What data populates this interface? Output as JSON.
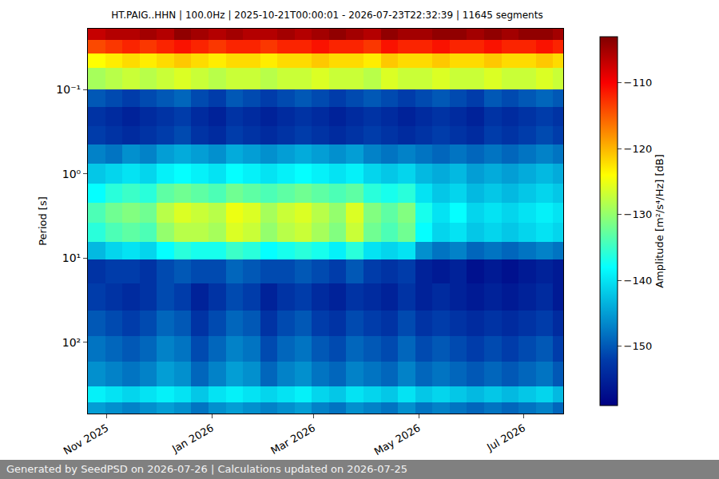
{
  "chart_data": {
    "type": "heatmap",
    "title": "HT.PAIG..HHN | 100.0Hz | 2025-10-21T00:00:01 - 2026-07-23T22:32:39 | 11645 segments",
    "footer": "Generated by SeedPSD on 2026-07-26 | Calculations updated on 2026-07-25",
    "y_label": "Period [s]",
    "colorbar_label": "Amplitude [m²/s⁴/Hz] [dB]",
    "log": "y",
    "grid": true,
    "x_edges": [
      "2025-10-21 00:00:01",
      "2025-10-31",
      "2025-11-10",
      "2025-11-20",
      "2025-11-30",
      "2025-12-10",
      "2025-12-20",
      "2025-12-30",
      "2026-01-09",
      "2026-01-19",
      "2026-01-29",
      "2026-02-08",
      "2026-02-18",
      "2026-02-28",
      "2026-03-10",
      "2026-03-20",
      "2026-03-30",
      "2026-04-09",
      "2026-04-19",
      "2026-04-29",
      "2026-05-09",
      "2026-05-19",
      "2026-05-29",
      "2026-06-08",
      "2026-06-18",
      "2026-06-28",
      "2026-07-08",
      "2026-07-18",
      "2026-07-23 22:32:39"
    ],
    "y_edges": [
      0.019,
      0.026,
      0.037,
      0.055,
      0.1,
      0.16,
      0.27,
      0.45,
      0.75,
      1.3,
      2.2,
      3.8,
      6.5,
      10.5,
      20,
      42,
      85,
      170,
      330,
      520,
      700
    ],
    "z": [
      [
        -107,
        -106,
        -106,
        -105,
        -106,
        -104,
        -105,
        -106,
        -105,
        -106,
        -106,
        -105,
        -106,
        -105,
        -104,
        -105,
        -106,
        -104,
        -105,
        -105,
        -104,
        -104,
        -105,
        -104,
        -105,
        -104,
        -104,
        -105
      ],
      [
        -114,
        -113,
        -112,
        -113,
        -112,
        -111,
        -112,
        -113,
        -112,
        -112,
        -113,
        -112,
        -112,
        -111,
        -112,
        -112,
        -113,
        -111,
        -112,
        -112,
        -111,
        -112,
        -112,
        -111,
        -112,
        -112,
        -111,
        -112
      ],
      [
        -124,
        -123,
        -122,
        -123,
        -122,
        -121,
        -122,
        -123,
        -122,
        -122,
        -123,
        -122,
        -122,
        -121,
        -122,
        -122,
        -123,
        -121,
        -122,
        -122,
        -121,
        -122,
        -122,
        -121,
        -122,
        -122,
        -121,
        -122
      ],
      [
        -129,
        -128,
        -127,
        -128,
        -127,
        -126,
        -127,
        -128,
        -127,
        -127,
        -128,
        -127,
        -127,
        -126,
        -127,
        -127,
        -128,
        -126,
        -127,
        -127,
        -126,
        -127,
        -127,
        -126,
        -127,
        -127,
        -126,
        -127
      ],
      [
        -150,
        -151,
        -152,
        -151,
        -150,
        -149,
        -151,
        -152,
        -150,
        -151,
        -152,
        -151,
        -150,
        -151,
        -152,
        -151,
        -150,
        -151,
        -152,
        -151,
        -150,
        -151,
        -152,
        -150,
        -151,
        -150,
        -149,
        -150
      ],
      [
        -153,
        -154,
        -155,
        -154,
        -153,
        -152,
        -154,
        -155,
        -153,
        -154,
        -155,
        -154,
        -153,
        -154,
        -155,
        -154,
        -153,
        -154,
        -155,
        -154,
        -153,
        -154,
        -155,
        -153,
        -154,
        -153,
        -152,
        -153
      ],
      [
        -152,
        -153,
        -154,
        -153,
        -152,
        -151,
        -153,
        -154,
        -152,
        -153,
        -154,
        -153,
        -152,
        -153,
        -154,
        -153,
        -152,
        -153,
        -154,
        -153,
        -152,
        -153,
        -154,
        -152,
        -153,
        -152,
        -151,
        -152
      ],
      [
        -147,
        -148,
        -146,
        -147,
        -145,
        -144,
        -145,
        -146,
        -144,
        -145,
        -146,
        -145,
        -144,
        -145,
        -146,
        -145,
        -147,
        -148,
        -147,
        -148,
        -149,
        -148,
        -149,
        -148,
        -149,
        -148,
        -147,
        -148
      ],
      [
        -142,
        -141,
        -140,
        -141,
        -139,
        -138,
        -139,
        -140,
        -138,
        -139,
        -140,
        -139,
        -138,
        -139,
        -140,
        -139,
        -141,
        -142,
        -141,
        -143,
        -144,
        -143,
        -145,
        -144,
        -145,
        -144,
        -143,
        -144
      ],
      [
        -138,
        -136,
        -135,
        -136,
        -133,
        -132,
        -133,
        -134,
        -132,
        -133,
        -134,
        -133,
        -132,
        -133,
        -134,
        -133,
        -136,
        -137,
        -136,
        -140,
        -142,
        -141,
        -143,
        -142,
        -143,
        -142,
        -141,
        -142
      ],
      [
        -134,
        -132,
        -131,
        -132,
        -128,
        -126,
        -127,
        -128,
        -125,
        -126,
        -129,
        -127,
        -126,
        -128,
        -130,
        -126,
        -131,
        -133,
        -131,
        -137,
        -140,
        -138,
        -141,
        -140,
        -141,
        -140,
        -139,
        -140
      ],
      [
        -136,
        -134,
        -133,
        -134,
        -130,
        -128,
        -128,
        -129,
        -126,
        -127,
        -130,
        -128,
        -127,
        -129,
        -131,
        -127,
        -132,
        -134,
        -132,
        -138,
        -141,
        -140,
        -142,
        -141,
        -142,
        -141,
        -140,
        -141
      ],
      [
        -143,
        -141,
        -140,
        -141,
        -138,
        -136,
        -137,
        -137,
        -135,
        -136,
        -138,
        -137,
        -136,
        -137,
        -139,
        -136,
        -140,
        -141,
        -140,
        -146,
        -148,
        -147,
        -149,
        -148,
        -149,
        -148,
        -147,
        -148
      ],
      [
        -153,
        -152,
        -152,
        -153,
        -151,
        -150,
        -151,
        -151,
        -149,
        -150,
        -151,
        -151,
        -150,
        -151,
        -152,
        -150,
        -152,
        -153,
        -152,
        -155,
        -156,
        -155,
        -157,
        -156,
        -157,
        -156,
        -155,
        -156
      ],
      [
        -152,
        -153,
        -154,
        -153,
        -151,
        -152,
        -155,
        -153,
        -151,
        -152,
        -155,
        -153,
        -152,
        -154,
        -155,
        -153,
        -154,
        -155,
        -153,
        -155,
        -154,
        -155,
        -156,
        -155,
        -156,
        -155,
        -154,
        -156
      ],
      [
        -150,
        -151,
        -152,
        -151,
        -149,
        -150,
        -153,
        -151,
        -149,
        -150,
        -153,
        -151,
        -150,
        -152,
        -153,
        -151,
        -152,
        -153,
        -151,
        -153,
        -152,
        -153,
        -154,
        -153,
        -154,
        -153,
        -152,
        -154
      ],
      [
        -148,
        -149,
        -150,
        -149,
        -147,
        -148,
        -151,
        -149,
        -147,
        -148,
        -151,
        -149,
        -148,
        -150,
        -151,
        -149,
        -150,
        -151,
        -149,
        -151,
        -150,
        -151,
        -152,
        -151,
        -152,
        -151,
        -150,
        -152
      ],
      [
        -146,
        -147,
        -148,
        -147,
        -145,
        -146,
        -149,
        -147,
        -145,
        -146,
        -149,
        -147,
        -146,
        -148,
        -149,
        -147,
        -148,
        -149,
        -147,
        -149,
        -148,
        -149,
        -150,
        -149,
        -150,
        -149,
        -148,
        -150
      ],
      [
        -139,
        -140,
        -141,
        -140,
        -139,
        -140,
        -142,
        -140,
        -139,
        -140,
        -141,
        -140,
        -139,
        -141,
        -142,
        -140,
        -141,
        -142,
        -140,
        -142,
        -141,
        -142,
        -143,
        -142,
        -143,
        -142,
        -141,
        -143
      ],
      [
        -145,
        -146,
        -147,
        -146,
        -145,
        -146,
        -148,
        -146,
        -145,
        -146,
        -147,
        -146,
        -145,
        -147,
        -148,
        -146,
        -147,
        -148,
        -146,
        -148,
        -147,
        -148,
        -149,
        -148,
        -149,
        -148,
        -147,
        -149
      ]
    ],
    "xlim": [
      "2025-10-21 00:00:01",
      "2026-07-23 22:32:39"
    ],
    "xticks": [
      {
        "value": "2025-11-01",
        "label": "Nov 2025"
      },
      {
        "value": "2026-01-01",
        "label": "Jan 2026"
      },
      {
        "value": "2026-03-01",
        "label": "Mar 2026"
      },
      {
        "value": "2026-05-01",
        "label": "May 2026"
      },
      {
        "value": "2026-07-01",
        "label": "Jul 2026"
      }
    ],
    "ylim": [
      700,
      0.019
    ],
    "yticks": [
      {
        "value": 0.1,
        "label": "10⁻¹"
      },
      {
        "value": 1,
        "label": "10⁰"
      },
      {
        "value": 10,
        "label": "10¹"
      },
      {
        "value": 100,
        "label": "10²"
      }
    ],
    "colorbar_range": [
      -159,
      -103
    ],
    "colorbar_ticks": [
      {
        "value": -150,
        "label": "−150"
      },
      {
        "value": -140,
        "label": "−140"
      },
      {
        "value": -130,
        "label": "−130"
      },
      {
        "value": -120,
        "label": "−120"
      },
      {
        "value": -110,
        "label": "−110"
      }
    ],
    "color": "jet"
  }
}
